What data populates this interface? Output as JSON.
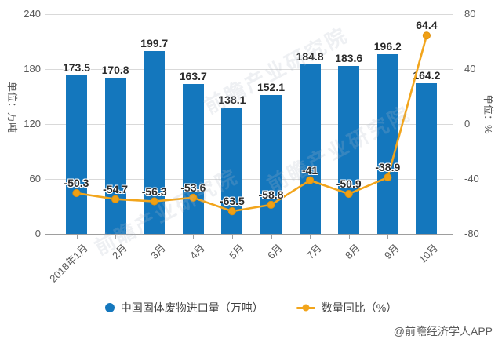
{
  "chart_data": {
    "type": "bar",
    "title": "",
    "categories": [
      "2018年1月",
      "2月",
      "3月",
      "4月",
      "5月",
      "6月",
      "7月",
      "8月",
      "9月",
      "10月"
    ],
    "series": [
      {
        "name": "中国固体废物进口量（万吨）",
        "type": "bar",
        "y_axis": "left",
        "color": "#1477bd",
        "values": [
          173.5,
          170.8,
          199.7,
          163.7,
          138.1,
          152.1,
          184.8,
          183.6,
          196.2,
          164.2
        ]
      },
      {
        "name": "数量同比（%）",
        "type": "line",
        "y_axis": "right",
        "color": "#f2a51c",
        "marker_color": "#f0a014",
        "values": [
          -50.3,
          -54.7,
          -56.3,
          -53.6,
          -63.5,
          -58.8,
          -41,
          -50.9,
          -38.9,
          64.4
        ]
      }
    ],
    "left_axis": {
      "name": "单位：万吨",
      "min": 0,
      "max": 240,
      "ticks": [
        0,
        60,
        120,
        180,
        240
      ]
    },
    "right_axis": {
      "name": "单位：%",
      "min": -80,
      "max": 80,
      "ticks": [
        -80,
        -40,
        0,
        40,
        80
      ]
    },
    "grid": true,
    "legend_position": "bottom"
  },
  "legend": {
    "items": [
      {
        "label": "中国固体废物进口量（万吨）",
        "color": "#1477bd",
        "marker": "circle"
      },
      {
        "label": "数量同比（%）",
        "color": "#f2a51c",
        "marker": "line-dot"
      }
    ]
  },
  "footer": {
    "credit": "@前瞻经济学人APP"
  },
  "watermark": {
    "text": "前瞻产业研究院"
  }
}
